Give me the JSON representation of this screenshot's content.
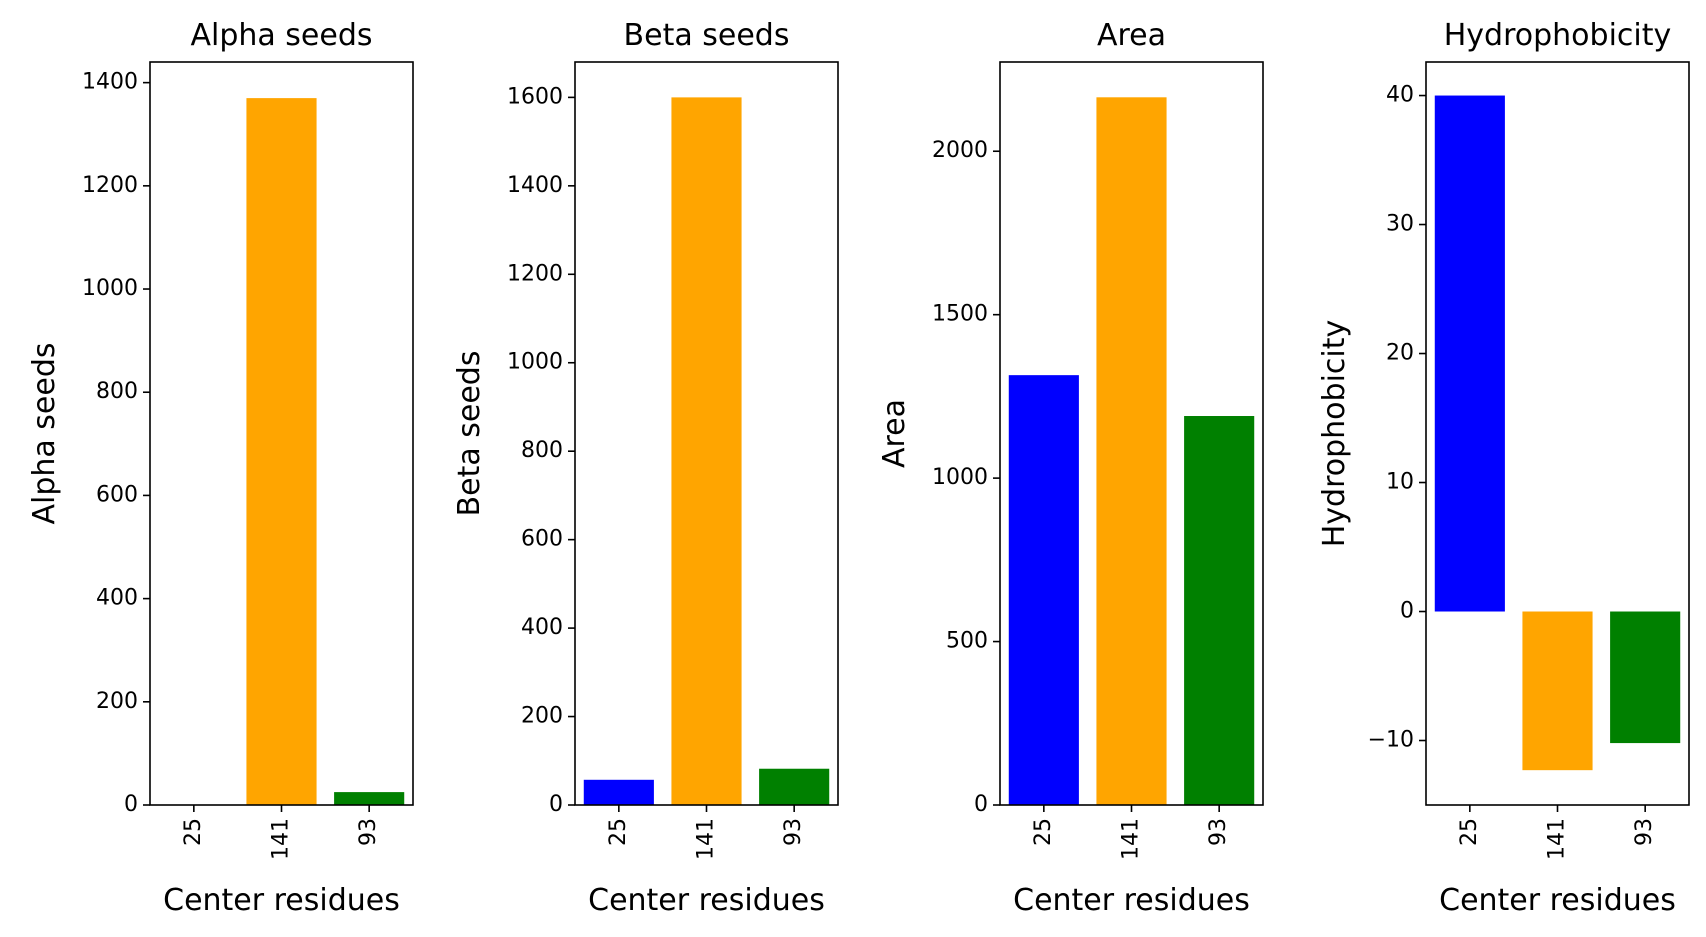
{
  "chart_data": [
    {
      "type": "bar",
      "title": "Alpha seeds",
      "xlabel": "Center residues",
      "ylabel": "Alpha seeds",
      "categories": [
        "25",
        "141",
        "93"
      ],
      "values": [
        0,
        1370,
        25
      ],
      "colors": [
        "#0000ff",
        "#ffa500",
        "#008000"
      ],
      "ylim": [
        0,
        1440
      ],
      "yticks": [
        0,
        200,
        400,
        600,
        800,
        1000,
        1200,
        1400
      ],
      "ytick_labels": [
        "0",
        "200",
        "400",
        "600",
        "800",
        "1000",
        "1200",
        "1400"
      ]
    },
    {
      "type": "bar",
      "title": "Beta seeds",
      "xlabel": "Center residues",
      "ylabel": "Beta seeds",
      "categories": [
        "25",
        "141",
        "93"
      ],
      "values": [
        57,
        1600,
        82
      ],
      "colors": [
        "#0000ff",
        "#ffa500",
        "#008000"
      ],
      "ylim": [
        0,
        1680
      ],
      "yticks": [
        0,
        200,
        400,
        600,
        800,
        1000,
        1200,
        1400,
        1600
      ],
      "ytick_labels": [
        "0",
        "200",
        "400",
        "600",
        "800",
        "1000",
        "1200",
        "1400",
        "1600"
      ]
    },
    {
      "type": "bar",
      "title": "Area",
      "xlabel": "Center residues",
      "ylabel": "Area",
      "categories": [
        "25",
        "141",
        "93"
      ],
      "values": [
        1315,
        2165,
        1190
      ],
      "colors": [
        "#0000ff",
        "#ffa500",
        "#008000"
      ],
      "ylim": [
        0,
        2273
      ],
      "yticks": [
        0,
        500,
        1000,
        1500,
        2000
      ],
      "ytick_labels": [
        "0",
        "500",
        "1000",
        "1500",
        "2000"
      ]
    },
    {
      "type": "bar",
      "title": "Hydrophobicity",
      "xlabel": "Center residues",
      "ylabel": "Hydrophobicity",
      "categories": [
        "25",
        "141",
        "93"
      ],
      "values": [
        40,
        -12.3,
        -10.2
      ],
      "colors": [
        "#0000ff",
        "#ffa500",
        "#008000"
      ],
      "ylim": [
        -15,
        42.6
      ],
      "yticks": [
        -10,
        0,
        10,
        20,
        30,
        40
      ],
      "ytick_labels": [
        "−10",
        "0",
        "10",
        "20",
        "30",
        "40"
      ]
    }
  ]
}
